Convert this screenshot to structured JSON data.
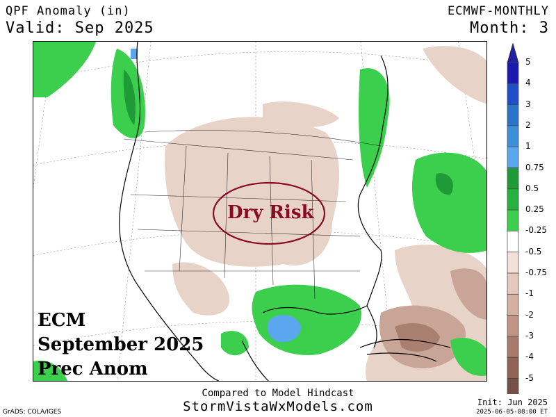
{
  "header": {
    "title": "QPF Anomaly (in)",
    "valid": "Valid: Sep 2025",
    "model": "ECMWF-MONTHLY",
    "month": "Month: 3"
  },
  "overlay": {
    "ecm_lines": [
      "ECM",
      "September 2025",
      "Prec Anom"
    ],
    "dry_risk": "Dry Risk",
    "dry_risk_color": "#8b0a1f"
  },
  "footer": {
    "compared": "Compared to Model Hindcast",
    "site": "StormVistaWxModels.com",
    "grads": "GrADS: COLA/IGES",
    "init": "Init: Jun 2025",
    "stamp": "2025-06-05-08:00 ET"
  },
  "legend": {
    "levels": [
      {
        "label": "5",
        "color": "#1a1ab0"
      },
      {
        "label": "4",
        "color": "#1f4fc8"
      },
      {
        "label": "3",
        "color": "#2a75c9"
      },
      {
        "label": "2",
        "color": "#3d8fd8"
      },
      {
        "label": "1",
        "color": "#5aa7f0"
      },
      {
        "label": "0.75",
        "color": "#1e9a36"
      },
      {
        "label": "0.5",
        "color": "#28b13e"
      },
      {
        "label": "0.25",
        "color": "#3ccf4e"
      },
      {
        "label": "-0.25",
        "color": "#ffffff"
      },
      {
        "label": "-0.5",
        "color": "#f1e0d8"
      },
      {
        "label": "-0.75",
        "color": "#e4c8bb"
      },
      {
        "label": "-1",
        "color": "#d4b0a1"
      },
      {
        "label": "-2",
        "color": "#c09484"
      },
      {
        "label": "-3",
        "color": "#a87a6b"
      },
      {
        "label": "-4",
        "color": "#8f6456"
      },
      {
        "label": "-5",
        "color": "#745045"
      }
    ],
    "top_color": "#2020a0",
    "bottom_color": "#5e4035"
  }
}
